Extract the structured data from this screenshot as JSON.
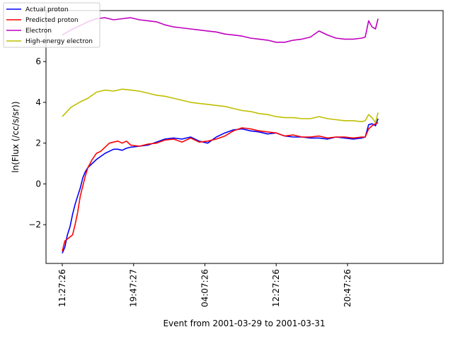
{
  "chart_data": {
    "type": "line",
    "title": "",
    "xlabel": "Event from 2001-03-29 to 2001-03-31",
    "ylabel": "ln(Flux (/cc/s/sr))",
    "x_unit": "hours",
    "xlim": [
      -1.9,
      44.5
    ],
    "ylim": [
      -3.9,
      8.5
    ],
    "x_ticks": [
      0,
      8.333,
      16.667,
      25.0,
      33.333
    ],
    "x_tick_labels": [
      "11:27:26",
      "19:47:27",
      "04:07:26",
      "12:27:26",
      "20:47:26"
    ],
    "y_ticks": [
      -2,
      0,
      2,
      4,
      6
    ],
    "y_tick_labels": [
      "−2",
      "0",
      "2",
      "4",
      "6"
    ],
    "grid": false,
    "legend_position": "top-left",
    "series": [
      {
        "name": "Actual proton",
        "color": "#0000ff",
        "x": [
          0,
          0.3,
          0.6,
          0.9,
          1.2,
          1.5,
          1.8,
          2.1,
          2.4,
          2.7,
          3.0,
          3.5,
          4.0,
          4.5,
          5.0,
          5.5,
          6.0,
          6.5,
          7.0,
          7.5,
          8.0,
          9.0,
          10.0,
          11.0,
          12.0,
          13.0,
          14.0,
          15.0,
          16.0,
          17.0,
          18.0,
          19.0,
          20.0,
          21.0,
          22.0,
          23.0,
          24.0,
          25.0,
          26.0,
          27.0,
          28.0,
          29.0,
          30.0,
          31.0,
          32.0,
          33.0,
          34.0,
          35.0,
          35.4,
          35.8,
          36.2,
          36.6,
          36.9
        ],
        "values": [
          -3.4,
          -3.1,
          -2.5,
          -2.1,
          -1.5,
          -1.0,
          -0.6,
          -0.2,
          0.3,
          0.6,
          0.8,
          1.0,
          1.2,
          1.35,
          1.5,
          1.6,
          1.7,
          1.7,
          1.65,
          1.75,
          1.8,
          1.85,
          1.9,
          2.05,
          2.2,
          2.25,
          2.2,
          2.3,
          2.1,
          2.0,
          2.3,
          2.5,
          2.65,
          2.7,
          2.6,
          2.55,
          2.45,
          2.5,
          2.35,
          2.3,
          2.3,
          2.25,
          2.25,
          2.2,
          2.3,
          2.25,
          2.2,
          2.25,
          2.3,
          2.9,
          2.95,
          2.85,
          3.2
        ]
      },
      {
        "name": "Predicted proton",
        "color": "#ff0000",
        "x": [
          0,
          0.3,
          0.6,
          0.9,
          1.2,
          1.5,
          1.8,
          2.1,
          2.4,
          2.7,
          3.0,
          3.5,
          4.0,
          4.5,
          5.0,
          5.5,
          6.0,
          6.5,
          7.0,
          7.5,
          8.0,
          9.0,
          10.0,
          11.0,
          12.0,
          13.0,
          14.0,
          15.0,
          16.0,
          17.0,
          18.0,
          19.0,
          20.0,
          21.0,
          22.0,
          23.0,
          24.0,
          25.0,
          26.0,
          27.0,
          28.0,
          29.0,
          30.0,
          31.0,
          32.0,
          33.0,
          34.0,
          35.0,
          35.4,
          35.8,
          36.2,
          36.6,
          36.9
        ],
        "values": [
          -3.3,
          -2.8,
          -2.7,
          -2.6,
          -2.5,
          -2.0,
          -1.4,
          -0.6,
          -0.1,
          0.4,
          0.8,
          1.2,
          1.5,
          1.6,
          1.8,
          2.0,
          2.05,
          2.1,
          2.0,
          2.1,
          1.9,
          1.85,
          1.95,
          2.0,
          2.15,
          2.2,
          2.05,
          2.25,
          2.05,
          2.1,
          2.2,
          2.35,
          2.6,
          2.75,
          2.7,
          2.6,
          2.55,
          2.5,
          2.35,
          2.4,
          2.3,
          2.3,
          2.35,
          2.25,
          2.3,
          2.3,
          2.25,
          2.3,
          2.3,
          2.7,
          2.85,
          2.95,
          3.0
        ]
      },
      {
        "name": "Electron",
        "color": "#bf00bf",
        "x": [
          0,
          1,
          2,
          3,
          4,
          5,
          6,
          7,
          8,
          9,
          10,
          11,
          12,
          13,
          14,
          15,
          16,
          17,
          18,
          19,
          20,
          21,
          22,
          23,
          24,
          25,
          26,
          27,
          28,
          29,
          30,
          31,
          32,
          33,
          34,
          35,
          35.4,
          35.8,
          36.2,
          36.6,
          36.9
        ],
        "values": [
          7.3,
          7.55,
          7.75,
          7.95,
          8.1,
          8.15,
          8.05,
          8.1,
          8.15,
          8.05,
          8.0,
          7.95,
          7.8,
          7.7,
          7.65,
          7.6,
          7.55,
          7.5,
          7.45,
          7.35,
          7.3,
          7.25,
          7.15,
          7.1,
          7.05,
          6.95,
          6.95,
          7.05,
          7.1,
          7.2,
          7.5,
          7.3,
          7.15,
          7.1,
          7.1,
          7.15,
          7.2,
          8.0,
          7.7,
          7.6,
          8.1
        ]
      },
      {
        "name": "High-energy electron",
        "color": "#bfbf00",
        "x": [
          0,
          1,
          2,
          3,
          4,
          5,
          6,
          7,
          8,
          9,
          10,
          11,
          12,
          13,
          14,
          15,
          16,
          17,
          18,
          19,
          20,
          21,
          22,
          23,
          24,
          25,
          26,
          27,
          28,
          29,
          30,
          31,
          32,
          33,
          34,
          35,
          35.4,
          35.8,
          36.2,
          36.6,
          36.9
        ],
        "values": [
          3.3,
          3.75,
          4.0,
          4.2,
          4.5,
          4.6,
          4.55,
          4.65,
          4.6,
          4.55,
          4.45,
          4.35,
          4.3,
          4.2,
          4.1,
          4.0,
          3.95,
          3.9,
          3.85,
          3.8,
          3.7,
          3.6,
          3.55,
          3.45,
          3.4,
          3.3,
          3.25,
          3.25,
          3.2,
          3.2,
          3.3,
          3.2,
          3.15,
          3.1,
          3.1,
          3.05,
          3.1,
          3.4,
          3.25,
          3.0,
          3.5
        ]
      }
    ]
  }
}
